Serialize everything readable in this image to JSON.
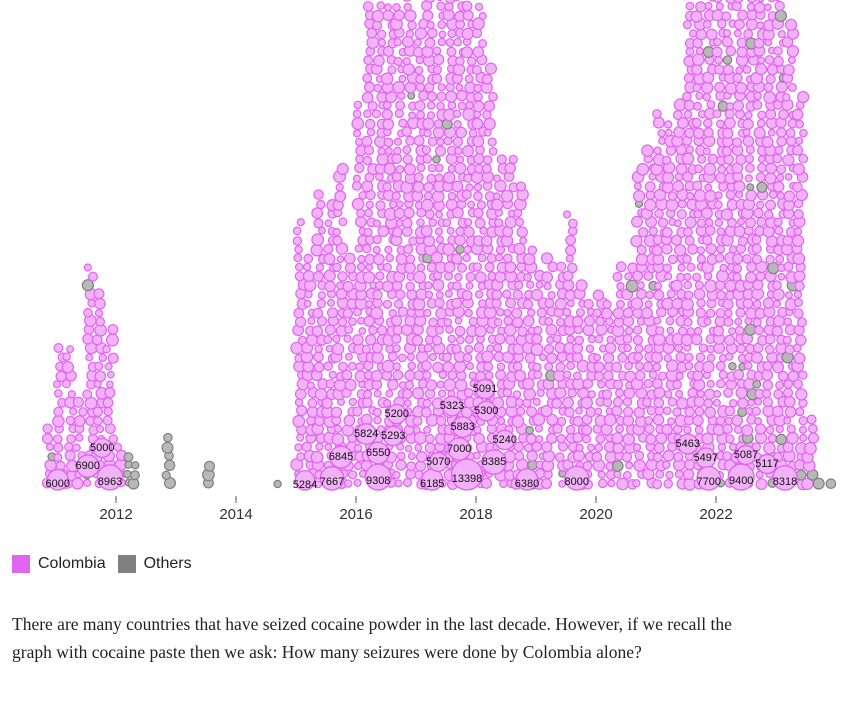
{
  "chart_data": {
    "type": "scatter",
    "subtype": "beeswarm",
    "xlabel": "",
    "ylabel": "",
    "x_ticks": [
      "2012",
      "2014",
      "2016",
      "2018",
      "2020",
      "2022"
    ],
    "xlim": [
      2010.8,
      2023.9
    ],
    "colors": {
      "Colombia": "#e066f0",
      "Colombia_fill": "#f2b2f8",
      "Others": "#808080",
      "Others_fill": "#b8b8b8"
    },
    "legend": [
      {
        "name": "Colombia",
        "color": "#e066f0"
      },
      {
        "name": "Others",
        "color": "#808080"
      }
    ],
    "legend_position": "bottom-left",
    "bins": [
      {
        "date": 2010.9,
        "colombia": 6,
        "others": 1
      },
      {
        "date": 2011.07,
        "colombia": 16,
        "others": 0
      },
      {
        "date": 2011.23,
        "colombia": 16,
        "others": 0
      },
      {
        "date": 2011.4,
        "colombia": 10,
        "others": 0
      },
      {
        "date": 2011.57,
        "colombia": 23,
        "others": 2
      },
      {
        "date": 2011.73,
        "colombia": 22,
        "others": 0
      },
      {
        "date": 2011.9,
        "colombia": 18,
        "others": 0
      },
      {
        "date": 2012.07,
        "colombia": 5,
        "others": 0
      },
      {
        "date": 2012.23,
        "colombia": 0,
        "others": 4
      },
      {
        "date": 2012.32,
        "colombia": 0,
        "others": 3
      },
      {
        "date": 2012.85,
        "colombia": 0,
        "others": 6
      },
      {
        "date": 2013.57,
        "colombia": 0,
        "others": 3
      },
      {
        "date": 2014.75,
        "colombia": 0,
        "others": 1
      },
      {
        "date": 2015.07,
        "colombia": 30,
        "others": 0
      },
      {
        "date": 2015.23,
        "colombia": 26,
        "others": 0
      },
      {
        "date": 2015.4,
        "colombia": 33,
        "others": 0
      },
      {
        "date": 2015.57,
        "colombia": 32,
        "others": 0
      },
      {
        "date": 2015.73,
        "colombia": 36,
        "others": 0
      },
      {
        "date": 2015.9,
        "colombia": 26,
        "others": 0
      },
      {
        "date": 2016.07,
        "colombia": 43,
        "others": 0
      },
      {
        "date": 2016.23,
        "colombia": 54,
        "others": 0
      },
      {
        "date": 2016.4,
        "colombia": 54,
        "others": 0
      },
      {
        "date": 2016.57,
        "colombia": 54,
        "others": 0
      },
      {
        "date": 2016.73,
        "colombia": 54,
        "others": 0
      },
      {
        "date": 2016.9,
        "colombia": 54,
        "others": 1
      },
      {
        "date": 2017.07,
        "colombia": 52,
        "others": 0
      },
      {
        "date": 2017.23,
        "colombia": 54,
        "others": 1
      },
      {
        "date": 2017.4,
        "colombia": 54,
        "others": 1
      },
      {
        "date": 2017.57,
        "colombia": 54,
        "others": 1
      },
      {
        "date": 2017.73,
        "colombia": 54,
        "others": 1
      },
      {
        "date": 2017.9,
        "colombia": 54,
        "others": 0
      },
      {
        "date": 2018.07,
        "colombia": 54,
        "others": 0
      },
      {
        "date": 2018.23,
        "colombia": 47,
        "others": 0
      },
      {
        "date": 2018.4,
        "colombia": 37,
        "others": 0
      },
      {
        "date": 2018.57,
        "colombia": 37,
        "others": 0
      },
      {
        "date": 2018.73,
        "colombia": 34,
        "others": 0
      },
      {
        "date": 2018.9,
        "colombia": 24,
        "others": 3
      },
      {
        "date": 2019.07,
        "colombia": 24,
        "others": 0
      },
      {
        "date": 2019.23,
        "colombia": 25,
        "others": 1
      },
      {
        "date": 2019.4,
        "colombia": 24,
        "others": 1
      },
      {
        "date": 2019.57,
        "colombia": 31,
        "others": 0
      },
      {
        "date": 2019.73,
        "colombia": 23,
        "others": 0
      },
      {
        "date": 2019.9,
        "colombia": 21,
        "others": 0
      },
      {
        "date": 2020.07,
        "colombia": 22,
        "others": 0
      },
      {
        "date": 2020.23,
        "colombia": 21,
        "others": 0
      },
      {
        "date": 2020.4,
        "colombia": 24,
        "others": 1
      },
      {
        "date": 2020.57,
        "colombia": 24,
        "others": 1
      },
      {
        "date": 2020.73,
        "colombia": 35,
        "others": 1
      },
      {
        "date": 2020.9,
        "colombia": 37,
        "others": 1
      },
      {
        "date": 2021.07,
        "colombia": 42,
        "others": 0
      },
      {
        "date": 2021.23,
        "colombia": 41,
        "others": 0
      },
      {
        "date": 2021.4,
        "colombia": 43,
        "others": 0
      },
      {
        "date": 2021.57,
        "colombia": 54,
        "others": 0
      },
      {
        "date": 2021.73,
        "colombia": 54,
        "others": 0
      },
      {
        "date": 2021.9,
        "colombia": 54,
        "others": 1
      },
      {
        "date": 2022.07,
        "colombia": 54,
        "others": 2
      },
      {
        "date": 2022.23,
        "colombia": 54,
        "others": 3
      },
      {
        "date": 2022.4,
        "colombia": 54,
        "others": 4
      },
      {
        "date": 2022.57,
        "colombia": 54,
        "others": 5
      },
      {
        "date": 2022.73,
        "colombia": 54,
        "others": 3
      },
      {
        "date": 2022.9,
        "colombia": 54,
        "others": 4
      },
      {
        "date": 2023.07,
        "colombia": 54,
        "others": 3
      },
      {
        "date": 2023.23,
        "colombia": 50,
        "others": 2
      },
      {
        "date": 2023.4,
        "colombia": 43,
        "others": 1
      },
      {
        "date": 2023.57,
        "colombia": 7,
        "others": 1
      },
      {
        "date": 2023.73,
        "colombia": 0,
        "others": 1
      },
      {
        "date": 2023.93,
        "colombia": 0,
        "others": 1
      }
    ],
    "labeled_points": [
      {
        "date": 2011.03,
        "value": "6000"
      },
      {
        "date": 2011.53,
        "value": "6900"
      },
      {
        "date": 2011.77,
        "value": "5000"
      },
      {
        "date": 2011.9,
        "value": "8963"
      },
      {
        "date": 2015.15,
        "value": "5284"
      },
      {
        "date": 2015.6,
        "value": "7667"
      },
      {
        "date": 2015.75,
        "value": "6845"
      },
      {
        "date": 2016.17,
        "value": "5824"
      },
      {
        "date": 2016.37,
        "value": "6550"
      },
      {
        "date": 2016.62,
        "value": "5293"
      },
      {
        "date": 2016.68,
        "value": "5200"
      },
      {
        "date": 2016.37,
        "value": "9308"
      },
      {
        "date": 2017.27,
        "value": "6185"
      },
      {
        "date": 2017.37,
        "value": "5070"
      },
      {
        "date": 2017.72,
        "value": "7000"
      },
      {
        "date": 2017.85,
        "value": "13398"
      },
      {
        "date": 2017.78,
        "value": "5883"
      },
      {
        "date": 2017.6,
        "value": "5323"
      },
      {
        "date": 2018.17,
        "value": "5300"
      },
      {
        "date": 2018.15,
        "value": "5091"
      },
      {
        "date": 2018.48,
        "value": "5240"
      },
      {
        "date": 2018.3,
        "value": "8385"
      },
      {
        "date": 2018.85,
        "value": "6380"
      },
      {
        "date": 2019.68,
        "value": "8000"
      },
      {
        "date": 2021.53,
        "value": "5463"
      },
      {
        "date": 2021.83,
        "value": "5497"
      },
      {
        "date": 2021.88,
        "value": "7700"
      },
      {
        "date": 2022.42,
        "value": "9400"
      },
      {
        "date": 2022.5,
        "value": "5087"
      },
      {
        "date": 2022.85,
        "value": "5117"
      },
      {
        "date": 2023.15,
        "value": "8318"
      }
    ]
  },
  "legend": {
    "colombia": "Colombia",
    "others": "Others"
  },
  "paragraph": "There are many countries that have seized cocaine powder in the last decade. However, if we recall the graph with cocaine paste then we ask: How many seizures were done by Colombia alone?"
}
